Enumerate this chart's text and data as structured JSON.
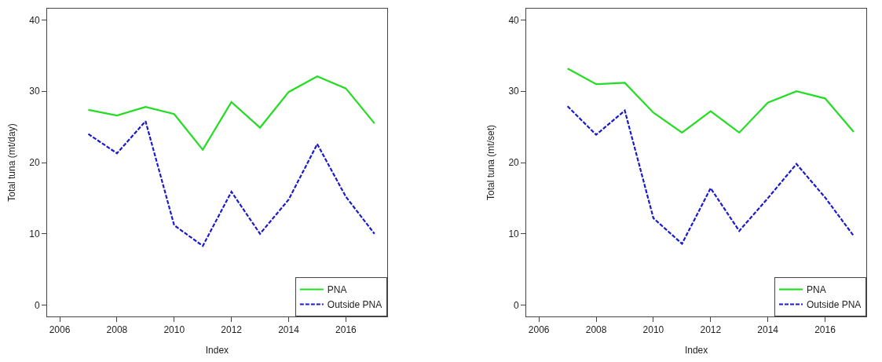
{
  "chart_data": [
    {
      "type": "line",
      "xlabel": "Index",
      "ylabel": "Total tuna (mt/day)",
      "x": [
        2007,
        2008,
        2009,
        2010,
        2011,
        2012,
        2013,
        2014,
        2015,
        2016,
        2017
      ],
      "series": [
        {
          "name": "PNA",
          "color": "#22dd22",
          "line_style": "solid",
          "values": [
            27.4,
            26.6,
            27.8,
            26.8,
            21.8,
            28.5,
            24.9,
            29.9,
            32.1,
            30.4,
            25.5
          ]
        },
        {
          "name": "Outside PNA",
          "color": "#1a1acc",
          "line_style": "dashed",
          "values": [
            24.0,
            21.3,
            25.8,
            11.2,
            8.3,
            15.9,
            10.0,
            14.8,
            22.6,
            15.2,
            10.0
          ]
        }
      ],
      "xlim": [
        2005.56,
        2017.44
      ],
      "xticks": [
        2006,
        2008,
        2010,
        2012,
        2014,
        2016
      ],
      "ylim": [
        -1.6,
        41.6
      ],
      "yticks": [
        0,
        10,
        20,
        30,
        40
      ],
      "legend": "bottom right",
      "marker": "none"
    },
    {
      "type": "line",
      "xlabel": "Index",
      "ylabel": "Total tuna (mt/set)",
      "x": [
        2007,
        2008,
        2009,
        2010,
        2011,
        2012,
        2013,
        2014,
        2015,
        2016,
        2017
      ],
      "series": [
        {
          "name": "PNA",
          "color": "#22dd22",
          "line_style": "solid",
          "values": [
            33.2,
            31.0,
            31.2,
            27.0,
            24.2,
            27.2,
            24.2,
            28.4,
            30.0,
            29.0,
            24.3
          ]
        },
        {
          "name": "Outside PNA",
          "color": "#1a1acc",
          "line_style": "dashed",
          "values": [
            27.9,
            23.9,
            27.3,
            12.2,
            8.6,
            16.4,
            10.4,
            15.0,
            19.8,
            15.1,
            9.7
          ]
        }
      ],
      "xlim": [
        2005.56,
        2017.44
      ],
      "xticks": [
        2006,
        2008,
        2010,
        2012,
        2014,
        2016
      ],
      "ylim": [
        -1.6,
        41.6
      ],
      "yticks": [
        0,
        10,
        20,
        30,
        40
      ],
      "legend": "bottom right",
      "marker": "none"
    }
  ]
}
